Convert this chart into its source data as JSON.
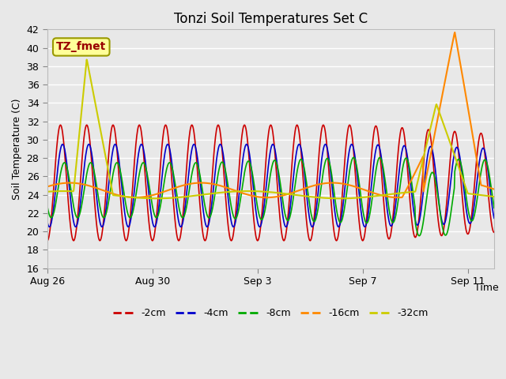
{
  "title": "Tonzi Soil Temperatures Set C",
  "xlabel": "Time",
  "ylabel": "Soil Temperature (C)",
  "ylim": [
    16,
    42
  ],
  "yticks": [
    16,
    18,
    20,
    22,
    24,
    26,
    28,
    30,
    32,
    34,
    36,
    38,
    40,
    42
  ],
  "bg_color": "#e8e8e8",
  "plot_bg_color": "#e8e8e8",
  "annotation_text": "TZ_fmet",
  "annotation_color": "#990000",
  "annotation_bg": "#ffff99",
  "annotation_border": "#999900",
  "colors": {
    "-2cm": "#cc0000",
    "-4cm": "#0000cc",
    "-8cm": "#00aa00",
    "-16cm": "#ff8800",
    "-32cm": "#cccc00"
  },
  "legend_labels": [
    "-2cm",
    "-4cm",
    "-8cm",
    "-16cm",
    "-32cm"
  ],
  "x_tick_labels": [
    "Aug 26",
    "Aug 30",
    "Sep 3",
    "Sep 7",
    "Sep 11"
  ],
  "x_tick_positions": [
    0,
    4,
    8,
    12,
    16
  ],
  "n_days": 17
}
